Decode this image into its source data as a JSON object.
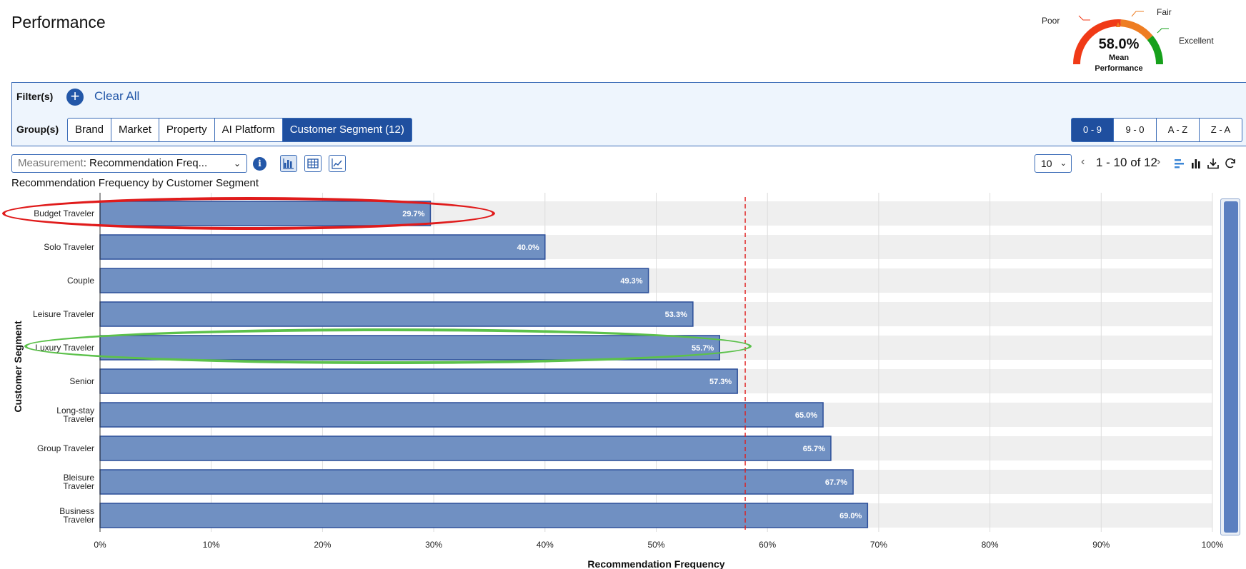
{
  "page": {
    "title": "Performance"
  },
  "gauge": {
    "value": "58.0%",
    "sub_line1": "Mean",
    "sub_line2": "Performance",
    "labels": {
      "poor": "Poor",
      "fair": "Fair",
      "excellent": "Excellent"
    },
    "colors": {
      "poor": "#f03a17",
      "fair": "#ee7d22",
      "excellent": "#16a01b"
    }
  },
  "filters": {
    "filter_label": "Filter(s)",
    "add_icon": "plus-circle-icon",
    "clear_all": "Clear All",
    "group_label": "Group(s)",
    "groups": [
      {
        "label": "Brand",
        "active": false
      },
      {
        "label": "Market",
        "active": false
      },
      {
        "label": "Property",
        "active": false
      },
      {
        "label": "AI Platform",
        "active": false
      },
      {
        "label": "Customer Segment (12)",
        "active": true
      }
    ],
    "sort": [
      {
        "label": "0 - 9",
        "active": true
      },
      {
        "label": "9 - 0",
        "active": false
      },
      {
        "label": "A - Z",
        "active": false
      },
      {
        "label": "Z - A",
        "active": false
      }
    ]
  },
  "toolbar": {
    "measurement_key": "Measurement",
    "measurement_value": ": Recommendation Freq...",
    "page_size": "10",
    "pager_text": "1 - 10 of 12",
    "view_icons": [
      "bar-chart-icon",
      "table-icon",
      "line-chart-icon"
    ],
    "tool_icons": [
      "horizontal-bar-icon",
      "vertical-bar-icon",
      "download-icon",
      "refresh-icon"
    ]
  },
  "chart_title": "Recommendation Frequency by Customer Segment",
  "colors": {
    "accent": "#1f4f9f",
    "bar_fill": "#7090c2",
    "bar_stroke": "#2c4f99",
    "mean_line": "#e02020",
    "track": "#efefef"
  },
  "chart_data": {
    "type": "bar",
    "orientation": "horizontal",
    "categories": [
      "Budget Traveler",
      "Solo Traveler",
      "Couple",
      "Leisure Traveler",
      "Luxury Traveler",
      "Senior",
      "Long-stay Traveler",
      "Group Traveler",
      "Bleisure Traveler",
      "Business Traveler"
    ],
    "category_lines": [
      [
        "Budget Traveler"
      ],
      [
        "Solo Traveler"
      ],
      [
        "Couple"
      ],
      [
        "Leisure Traveler"
      ],
      [
        "Luxury Traveler"
      ],
      [
        "Senior"
      ],
      [
        "Long-stay",
        "Traveler"
      ],
      [
        "Group Traveler"
      ],
      [
        "Bleisure",
        "Traveler"
      ],
      [
        "Business",
        "Traveler"
      ]
    ],
    "values": [
      29.7,
      40.0,
      49.3,
      53.3,
      55.7,
      57.3,
      65.0,
      65.7,
      67.7,
      69.0
    ],
    "value_labels": [
      "29.7%",
      "40.0%",
      "49.3%",
      "53.3%",
      "55.7%",
      "57.3%",
      "65.0%",
      "65.7%",
      "67.7%",
      "69.0%"
    ],
    "mean": 58.0,
    "xlim": [
      0,
      100
    ],
    "xticks": [
      "0%",
      "10%",
      "20%",
      "30%",
      "40%",
      "50%",
      "60%",
      "70%",
      "80%",
      "90%",
      "100%"
    ],
    "xlabel": "Recommendation Frequency",
    "ylabel": "Customer Segment",
    "grid": true,
    "highlighted": [
      {
        "category": "Budget Traveler",
        "color": "#e01b1b"
      },
      {
        "category": "Luxury Traveler",
        "color": "#5cc14b"
      }
    ]
  }
}
